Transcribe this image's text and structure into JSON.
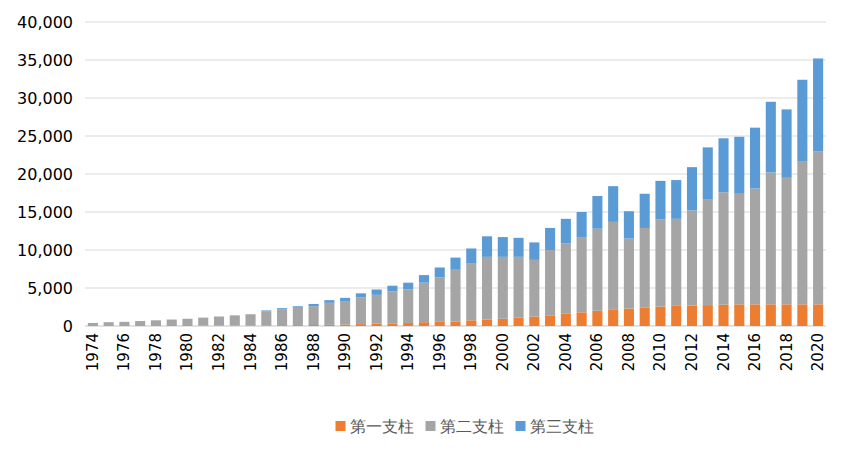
{
  "chart_data": {
    "type": "bar",
    "stacked": true,
    "grid": true,
    "legend": "bottom",
    "categories": [
      "1974",
      null,
      "1976",
      null,
      "1978",
      null,
      "1980",
      null,
      "1982",
      null,
      "1984",
      null,
      "1986",
      null,
      "1988",
      null,
      "1990",
      null,
      "1992",
      null,
      "1994",
      null,
      "1996",
      null,
      "1998",
      null,
      "2000",
      null,
      "2002",
      null,
      "2004",
      null,
      "2006",
      null,
      "2008",
      null,
      "2010",
      null,
      "2012",
      null,
      "2014",
      null,
      "2016",
      null,
      "2018",
      null,
      "2020"
    ],
    "series": [
      {
        "name": "第一支柱",
        "color": "#ed7d31",
        "values": [
          0,
          0,
          0,
          0,
          0,
          0,
          0,
          50,
          50,
          60,
          70,
          80,
          100,
          110,
          130,
          150,
          200,
          250,
          300,
          350,
          400,
          500,
          550,
          600,
          750,
          850,
          950,
          1100,
          1250,
          1400,
          1600,
          1800,
          2000,
          2200,
          2300,
          2450,
          2550,
          2650,
          2700,
          2750,
          2800,
          2850,
          2850,
          2850,
          2850,
          2850,
          2850
        ]
      },
      {
        "name": "第二支柱",
        "color": "#a5a5a5",
        "values": [
          400,
          500,
          550,
          650,
          750,
          850,
          950,
          1050,
          1200,
          1340,
          1480,
          1870,
          2100,
          2290,
          2470,
          2900,
          3000,
          3500,
          3800,
          4200,
          4400,
          5200,
          5850,
          6800,
          7450,
          8250,
          8150,
          8000,
          7450,
          8600,
          9300,
          9900,
          10800,
          11500,
          9200,
          10450,
          11450,
          11450,
          12500,
          13950,
          14800,
          14550,
          15250,
          17350,
          16650,
          18850,
          20150
        ]
      },
      {
        "name": "第三支柱",
        "color": "#5b9bd5",
        "values": [
          0,
          0,
          0,
          0,
          0,
          0,
          0,
          0,
          0,
          0,
          0,
          100,
          150,
          200,
          300,
          350,
          500,
          550,
          700,
          750,
          900,
          1000,
          1300,
          1600,
          2000,
          2700,
          2600,
          2500,
          2300,
          2900,
          3200,
          3300,
          4300,
          4700,
          3600,
          4500,
          5100,
          5100,
          5700,
          6800,
          7100,
          7500,
          8000,
          9300,
          9000,
          10700,
          12200
        ]
      }
    ],
    "ylim": [
      0,
      40000
    ],
    "yticks": [
      0,
      {
        "value": 5000,
        "label": "5,000"
      },
      {
        "value": 10000,
        "label": "10,000"
      },
      {
        "value": 15000,
        "label": "15,000"
      },
      {
        "value": 20000,
        "label": "20,000"
      },
      {
        "value": 25000,
        "label": "25,000"
      },
      {
        "value": 30000,
        "label": "30,000"
      },
      {
        "value": 35000,
        "label": "35,000"
      },
      {
        "value": 40000,
        "label": "40,000"
      }
    ]
  }
}
